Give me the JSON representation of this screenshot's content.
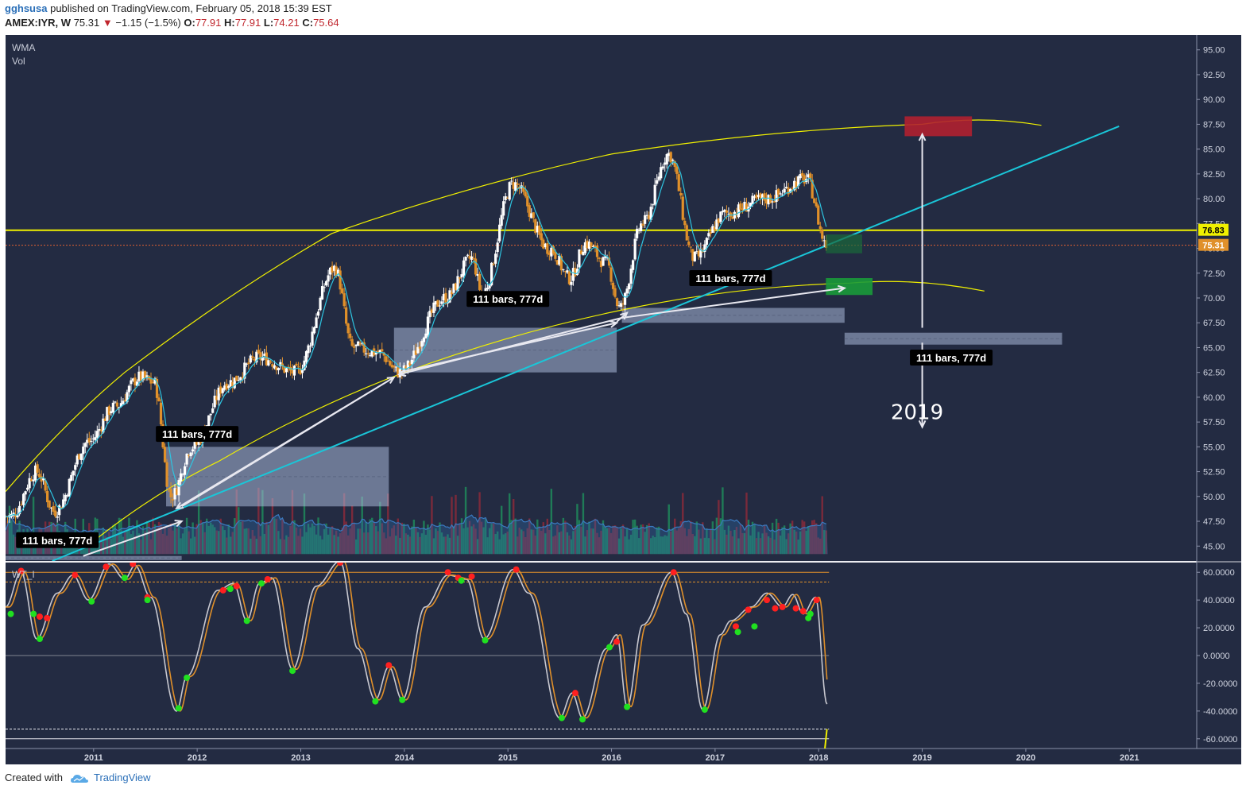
{
  "header": {
    "author": "gghsusa",
    "published_text": "published on TradingView.com, February 05, 2018 15:39 EST",
    "symbol": "AMEX:IYR, W",
    "last": "75.31",
    "change": "−1.15 (−1.5%)",
    "o_label": "O:",
    "o_val": "77.91",
    "h_label": "H:",
    "h_val": "77.91",
    "l_label": "L:",
    "l_val": "74.21",
    "c_label": "C:",
    "c_val": "75.64"
  },
  "footer": {
    "created_with": "Created with",
    "brand": "TradingView"
  },
  "colors": {
    "background": "#232b42",
    "candle_up": "#ffffff",
    "candle_down": "#e0902a",
    "wma": "#2ec4e0",
    "yellow": "#f0f000",
    "cyan_trend": "#1ac6d8",
    "label_price": "#f0f000",
    "label_last": "#e0902a",
    "vol_up": "#1f8a5a",
    "vol_down": "#8a2a3a",
    "vol_ma": "#2e6aa8",
    "osc_grey": "#c8c8d0",
    "osc_orange": "#e0902a",
    "dot_red": "#ff2020",
    "dot_green": "#20e020"
  },
  "chart_data": {
    "type": "candlestick",
    "panes": [
      "price",
      "oscillator"
    ],
    "price_pane": {
      "indicator_labels": [
        "WMA",
        "Vol"
      ],
      "ylim": [
        43.5,
        96.5
      ],
      "y_ticks": [
        "95.00",
        "92.50",
        "90.00",
        "87.50",
        "85.00",
        "82.50",
        "80.00",
        "77.50",
        "75.00",
        "72.50",
        "70.00",
        "67.50",
        "65.00",
        "62.50",
        "60.00",
        "57.50",
        "55.00",
        "52.50",
        "50.00",
        "47.50",
        "45.00"
      ],
      "horizontal_line": 76.83,
      "price_labels": [
        {
          "value": 76.83,
          "text": "76.83"
        },
        {
          "value": 75.31,
          "text": "75.31"
        }
      ],
      "close_series_anchors": [
        {
          "date": "2010.2",
          "close": 48.0
        },
        {
          "date": "2010.45",
          "close": 52.5
        },
        {
          "date": "2010.62",
          "close": 48.5
        },
        {
          "date": "2010.95",
          "close": 55.5
        },
        {
          "date": "2011.2",
          "close": 59.0
        },
        {
          "date": "2011.45",
          "close": 62.0
        },
        {
          "date": "2011.58",
          "close": 61.5
        },
        {
          "date": "2011.75",
          "close": 50.0
        },
        {
          "date": "2011.95",
          "close": 55.0
        },
        {
          "date": "2012.3",
          "close": 61.5
        },
        {
          "date": "2012.6",
          "close": 64.0
        },
        {
          "date": "2012.95",
          "close": 62.5
        },
        {
          "date": "2013.33",
          "close": 73.0
        },
        {
          "date": "2013.5",
          "close": 65.0
        },
        {
          "date": "2013.75",
          "close": 64.5
        },
        {
          "date": "2013.95",
          "close": 62.5
        },
        {
          "date": "2014.4",
          "close": 70.0
        },
        {
          "date": "2014.65",
          "close": 74.0
        },
        {
          "date": "2014.75",
          "close": 70.5
        },
        {
          "date": "2015.05",
          "close": 81.5
        },
        {
          "date": "2015.4",
          "close": 75.0
        },
        {
          "date": "2015.6",
          "close": 72.0
        },
        {
          "date": "2015.75",
          "close": 75.5
        },
        {
          "date": "2015.95",
          "close": 73.5
        },
        {
          "date": "2016.08",
          "close": 69.0
        },
        {
          "date": "2016.3",
          "close": 77.5
        },
        {
          "date": "2016.55",
          "close": 84.5
        },
        {
          "date": "2016.8",
          "close": 74.0
        },
        {
          "date": "2017.1",
          "close": 78.5
        },
        {
          "date": "2017.5",
          "close": 80.0
        },
        {
          "date": "2017.88",
          "close": 82.0
        },
        {
          "date": "2018.08",
          "close": 75.3
        }
      ],
      "annotations": [
        {
          "text": "111 bars, 777d"
        },
        {
          "text": "111 bars, 777d"
        },
        {
          "text": "111 bars, 777d"
        },
        {
          "text": "111 bars, 777d"
        },
        {
          "text": "111 bars, 777d"
        },
        {
          "text": "2019"
        }
      ]
    },
    "oscillator_pane": {
      "indicator_label": "WT_I",
      "ylim": [
        -67,
        67
      ],
      "y_ticks": [
        "60.0000",
        "40.0000",
        "20.0000",
        "0.0000",
        "-20.0000",
        "-40.0000",
        "-60.0000"
      ],
      "levels": [
        60,
        53,
        0,
        -53,
        -60
      ],
      "wave_anchors": [
        {
          "date": "2010.15",
          "value": 35
        },
        {
          "date": "2010.3",
          "value": 60
        },
        {
          "date": "2010.45",
          "value": 12
        },
        {
          "date": "2010.65",
          "value": 45
        },
        {
          "date": "2010.8",
          "value": 58
        },
        {
          "date": "2010.95",
          "value": 40
        },
        {
          "date": "2011.15",
          "value": 66
        },
        {
          "date": "2011.3",
          "value": 55
        },
        {
          "date": "2011.4",
          "value": 65
        },
        {
          "date": "2011.55",
          "value": 42
        },
        {
          "date": "2011.8",
          "value": -40
        },
        {
          "date": "2011.9",
          "value": -15
        },
        {
          "date": "2012.2",
          "value": 47
        },
        {
          "date": "2012.35",
          "value": 52
        },
        {
          "date": "2012.48",
          "value": 25
        },
        {
          "date": "2012.6",
          "value": 52
        },
        {
          "date": "2012.72",
          "value": 56
        },
        {
          "date": "2012.92",
          "value": -10
        },
        {
          "date": "2013.15",
          "value": 50
        },
        {
          "date": "2013.38",
          "value": 68
        },
        {
          "date": "2013.55",
          "value": 5
        },
        {
          "date": "2013.72",
          "value": -32
        },
        {
          "date": "2013.85",
          "value": -8
        },
        {
          "date": "2013.98",
          "value": -32
        },
        {
          "date": "2014.2",
          "value": 35
        },
        {
          "date": "2014.42",
          "value": 58
        },
        {
          "date": "2014.6",
          "value": 55
        },
        {
          "date": "2014.77",
          "value": 12
        },
        {
          "date": "2015.05",
          "value": 62
        },
        {
          "date": "2015.2",
          "value": 45
        },
        {
          "date": "2015.5",
          "value": -45
        },
        {
          "date": "2015.62",
          "value": -27
        },
        {
          "date": "2015.72",
          "value": -45
        },
        {
          "date": "2015.95",
          "value": 5
        },
        {
          "date": "2016.05",
          "value": 15
        },
        {
          "date": "2016.15",
          "value": -37
        },
        {
          "date": "2016.3",
          "value": 22
        },
        {
          "date": "2016.58",
          "value": 60
        },
        {
          "date": "2016.72",
          "value": 30
        },
        {
          "date": "2016.88",
          "value": -39
        },
        {
          "date": "2017.05",
          "value": 15
        },
        {
          "date": "2017.15",
          "value": 25
        },
        {
          "date": "2017.35",
          "value": 35
        },
        {
          "date": "2017.5",
          "value": 45
        },
        {
          "date": "2017.65",
          "value": 35
        },
        {
          "date": "2017.75",
          "value": 44
        },
        {
          "date": "2017.85",
          "value": 30
        },
        {
          "date": "2017.97",
          "value": 42
        },
        {
          "date": "2018.08",
          "value": -35
        }
      ],
      "red_dots": [
        {
          "date": "2010.3",
          "value": 61
        },
        {
          "date": "2010.48",
          "value": 28
        },
        {
          "date": "2010.55",
          "value": 27
        },
        {
          "date": "2010.82",
          "value": 58
        },
        {
          "date": "2011.12",
          "value": 64
        },
        {
          "date": "2011.38",
          "value": 66
        },
        {
          "date": "2011.52",
          "value": 42
        },
        {
          "date": "2012.25",
          "value": 47
        },
        {
          "date": "2012.38",
          "value": 50
        },
        {
          "date": "2012.68",
          "value": 55
        },
        {
          "date": "2013.38",
          "value": 67
        },
        {
          "date": "2013.85",
          "value": -7
        },
        {
          "date": "2014.42",
          "value": 60
        },
        {
          "date": "2014.52",
          "value": 56
        },
        {
          "date": "2014.65",
          "value": 57
        },
        {
          "date": "2015.08",
          "value": 62
        },
        {
          "date": "2015.65",
          "value": -27
        },
        {
          "date": "2016.05",
          "value": 10
        },
        {
          "date": "2016.6",
          "value": 60
        },
        {
          "date": "2017.2",
          "value": 21
        },
        {
          "date": "2017.32",
          "value": 33
        },
        {
          "date": "2017.5",
          "value": 40
        },
        {
          "date": "2017.58",
          "value": 34
        },
        {
          "date": "2017.65",
          "value": 35
        },
        {
          "date": "2017.78",
          "value": 34
        },
        {
          "date": "2017.85",
          "value": 32
        },
        {
          "date": "2017.98",
          "value": 40
        }
      ],
      "green_dots": [
        {
          "date": "2010.2",
          "value": 30
        },
        {
          "date": "2010.42",
          "value": 30
        },
        {
          "date": "2010.48",
          "value": 12
        },
        {
          "date": "2010.98",
          "value": 39
        },
        {
          "date": "2011.3",
          "value": 56
        },
        {
          "date": "2011.52",
          "value": 40
        },
        {
          "date": "2011.82",
          "value": -38
        },
        {
          "date": "2011.9",
          "value": -16
        },
        {
          "date": "2012.32",
          "value": 48
        },
        {
          "date": "2012.48",
          "value": 25
        },
        {
          "date": "2012.62",
          "value": 52
        },
        {
          "date": "2012.92",
          "value": -11
        },
        {
          "date": "2013.72",
          "value": -33
        },
        {
          "date": "2013.98",
          "value": -32
        },
        {
          "date": "2014.55",
          "value": 54
        },
        {
          "date": "2014.78",
          "value": 11
        },
        {
          "date": "2015.52",
          "value": -45
        },
        {
          "date": "2015.72",
          "value": -46
        },
        {
          "date": "2015.98",
          "value": 6
        },
        {
          "date": "2016.15",
          "value": -37
        },
        {
          "date": "2016.9",
          "value": -39
        },
        {
          "date": "2017.22",
          "value": 17
        },
        {
          "date": "2017.38",
          "value": 21
        },
        {
          "date": "2017.9",
          "value": 27
        },
        {
          "date": "2017.92",
          "value": 30
        }
      ]
    },
    "x_axis": {
      "xlim": [
        2010.15,
        2021.65
      ],
      "ticks": [
        "2011",
        "2012",
        "2013",
        "2014",
        "2015",
        "2016",
        "2017",
        "2018",
        "2019",
        "2020",
        "2021"
      ]
    }
  }
}
